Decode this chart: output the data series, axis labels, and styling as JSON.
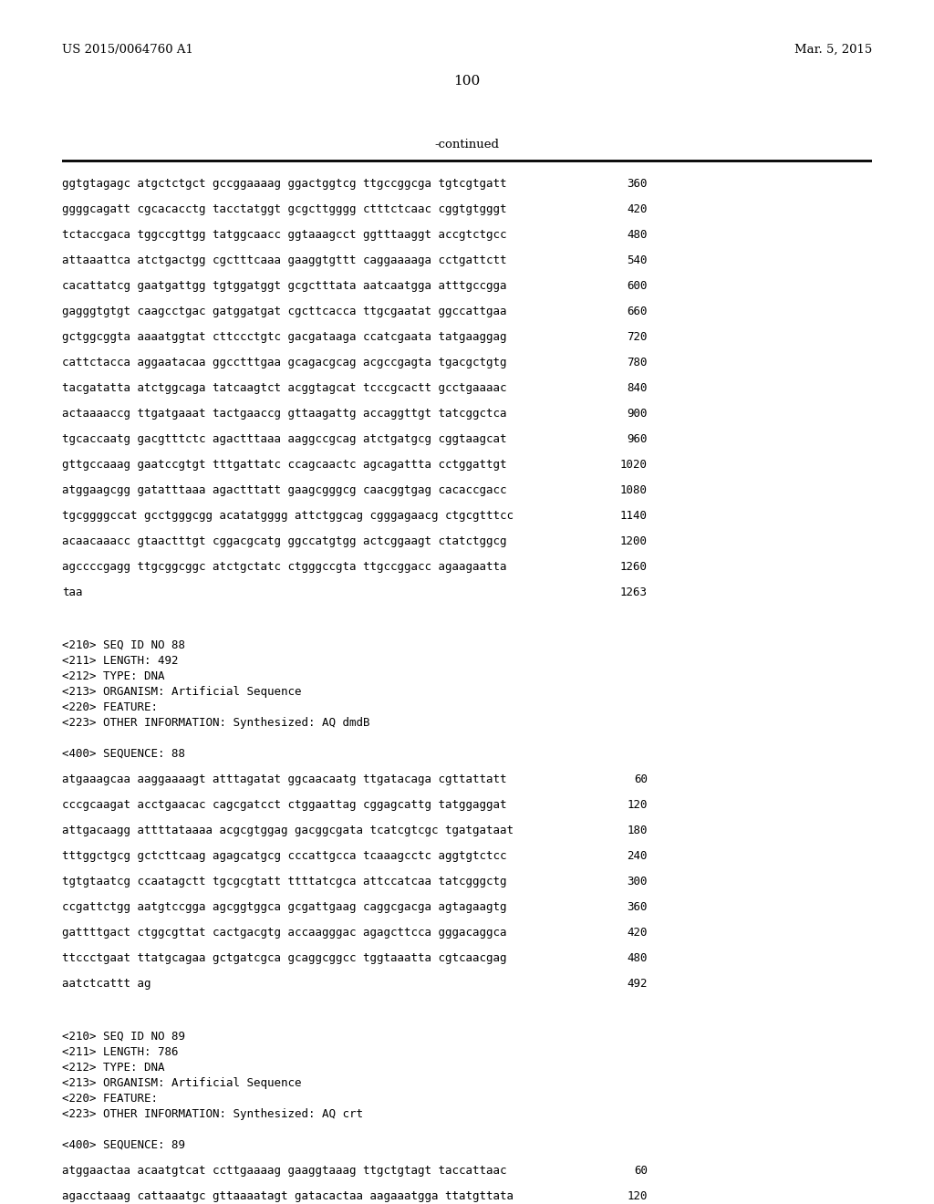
{
  "patent_number": "US 2015/0064760 A1",
  "date": "Mar. 5, 2015",
  "page_number": "100",
  "continued_label": "-continued",
  "background_color": "#ffffff",
  "text_color": "#000000",
  "mono_font": "monospace",
  "serif_font": "serif",
  "sequence_lines": [
    [
      "ggtgtagagc atgctctgct gccggaaaag ggactggtcg ttgccggcga tgtcgtgatt",
      "360"
    ],
    [
      "ggggcagatt cgcacacctg tacctatggt gcgcttgggg ctttctcaac cggtgtgggt",
      "420"
    ],
    [
      "tctaccgaca tggccgttgg tatggcaacc ggtaaagcct ggtttaaggt accgtctgcc",
      "480"
    ],
    [
      "attaaattca atctgactgg cgctttcaaa gaaggtgttt caggaaaaga cctgattctt",
      "540"
    ],
    [
      "cacattatcg gaatgattgg tgtggatggt gcgctttata aatcaatgga atttgccgga",
      "600"
    ],
    [
      "gagggtgtgt caagcctgac gatggatgat cgcttcacca ttgcgaatat ggccattgaa",
      "660"
    ],
    [
      "gctggcggta aaaatggtat cttccctgtc gacgataaga ccatcgaata tatgaaggag",
      "720"
    ],
    [
      "cattctacca aggaatacaa ggcctttgaa gcagacgcag acgccgagta tgacgctgtg",
      "780"
    ],
    [
      "tacgatatta atctggcaga tatcaagtct acggtagcat tcccgcactt gcctgaaaac",
      "840"
    ],
    [
      "actaaaaccg ttgatgaaat tactgaaccg gttaagattg accaggttgt tatcggctca",
      "900"
    ],
    [
      "tgcaccaatg gacgtttctc agactttaaa aaggccgcag atctgatgcg cggtaagcat",
      "960"
    ],
    [
      "gttgccaaag gaatccgtgt tttgattatc ccagcaactc agcagattta cctggattgt",
      "1020"
    ],
    [
      "atggaagcgg gatatttaaa agactttatt gaagcgggcg caacggtgag cacaccgacc",
      "1080"
    ],
    [
      "tgcggggccat gcctgggcgg acatatgggg attctggcag cgggagaacg ctgcgtttcc",
      "1140"
    ],
    [
      "acaacaaacc gtaactttgt cggacgcatg ggccatgtgg actcggaagt ctatctggcg",
      "1200"
    ],
    [
      "agccccgagg ttgcggcggc atctgctatc ctgggccgta ttgccggacc agaagaatta",
      "1260"
    ],
    [
      "taa",
      "1263"
    ]
  ],
  "seq88_header": [
    "<210> SEQ ID NO 88",
    "<211> LENGTH: 492",
    "<212> TYPE: DNA",
    "<213> ORGANISM: Artificial Sequence",
    "<220> FEATURE:",
    "<223> OTHER INFORMATION: Synthesized: AQ dmdB"
  ],
  "seq88_label": "<400> SEQUENCE: 88",
  "seq88_lines": [
    [
      "atgaaagcaa aaggaaaagt atttagatat ggcaacaatg ttgatacaga cgttattatt",
      "60"
    ],
    [
      "cccgcaagat acctgaacac cagcgatcct ctggaattag cggagcattg tatggaggat",
      "120"
    ],
    [
      "attgacaagg attttataaaa acgcgtggag gacggcgata tcatcgtcgc tgatgataat",
      "180"
    ],
    [
      "tttggctgcg gctcttcaag agagcatgcg cccattgcca tcaaagcctc aggtgtctcc",
      "240"
    ],
    [
      "tgtgtaatcg ccaatagctt tgcgcgtatt ttttatcgca attccatcaa tatcgggctg",
      "300"
    ],
    [
      "ccgattctgg aatgtccgga agcggtggca gcgattgaag caggcgacga agtagaagtg",
      "360"
    ],
    [
      "gattttgact ctggcgttat cactgacgtg accaagggac agagcttcca gggacaggca",
      "420"
    ],
    [
      "ttccctgaat ttatgcagaa gctgatcgca gcaggcggcc tggtaaatta cgtcaacgag",
      "480"
    ],
    [
      "aatctcattt ag",
      "492"
    ]
  ],
  "seq89_header": [
    "<210> SEQ ID NO 89",
    "<211> LENGTH: 786",
    "<212> TYPE: DNA",
    "<213> ORGANISM: Artificial Sequence",
    "<220> FEATURE:",
    "<223> OTHER INFORMATION: Synthesized: AQ crt"
  ],
  "seq89_label": "<400> SEQUENCE: 89",
  "seq89_lines": [
    [
      "atggaactaa acaatgtcat ccttgaaaag gaaggtaaag ttgctgtagt taccattaac",
      "60"
    ],
    [
      "agacctaaag cattaaatgc gttaaaatagt gatacactaa aagaaatgga ttatgttata",
      "120"
    ]
  ]
}
